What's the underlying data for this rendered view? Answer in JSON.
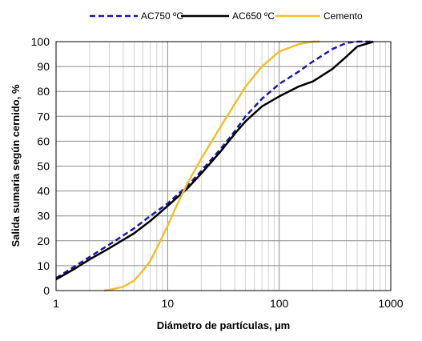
{
  "chart_data": {
    "type": "line",
    "xlabel": "Diámetro de partículas, µm",
    "ylabel": "Salida sumaria según cernido, %",
    "xscale": "log",
    "xlim": [
      1,
      1000
    ],
    "ylim": [
      0,
      100
    ],
    "x_tick_labels": [
      "1",
      "10",
      "100",
      "1000"
    ],
    "y_tick_labels": [
      "0",
      "10",
      "20",
      "30",
      "40",
      "50",
      "60",
      "70",
      "80",
      "90",
      "100"
    ],
    "grid": true,
    "legend_position": "top",
    "series": [
      {
        "name": "AC750 ºC",
        "color": "#1a1aa6",
        "style": "dashed",
        "points": [
          [
            1,
            5
          ],
          [
            1.5,
            10
          ],
          [
            2,
            13.5
          ],
          [
            3,
            18.5
          ],
          [
            5,
            25
          ],
          [
            7,
            30
          ],
          [
            10,
            35
          ],
          [
            15,
            42
          ],
          [
            20,
            48
          ],
          [
            30,
            57
          ],
          [
            40,
            64
          ],
          [
            50,
            70
          ],
          [
            70,
            77
          ],
          [
            100,
            83
          ],
          [
            150,
            88
          ],
          [
            200,
            92
          ],
          [
            300,
            97
          ],
          [
            400,
            99.5
          ],
          [
            500,
            100
          ],
          [
            700,
            100
          ]
        ]
      },
      {
        "name": "AC650 ºC",
        "color": "#000000",
        "style": "solid",
        "points": [
          [
            1,
            4.5
          ],
          [
            1.5,
            9
          ],
          [
            2,
            12.5
          ],
          [
            3,
            17
          ],
          [
            5,
            23
          ],
          [
            7,
            28
          ],
          [
            10,
            34
          ],
          [
            15,
            41
          ],
          [
            20,
            47
          ],
          [
            30,
            56
          ],
          [
            40,
            63
          ],
          [
            50,
            68
          ],
          [
            70,
            74
          ],
          [
            100,
            78
          ],
          [
            150,
            82
          ],
          [
            200,
            84
          ],
          [
            300,
            89
          ],
          [
            400,
            94
          ],
          [
            500,
            98
          ],
          [
            700,
            100
          ]
        ]
      },
      {
        "name": "Cemento",
        "color": "#f2c02e",
        "style": "solid",
        "points": [
          [
            2.7,
            0
          ],
          [
            3,
            0.3
          ],
          [
            4,
            1.5
          ],
          [
            5,
            4
          ],
          [
            6,
            8
          ],
          [
            7,
            12
          ],
          [
            8,
            17
          ],
          [
            10,
            26
          ],
          [
            12,
            34
          ],
          [
            15,
            43
          ],
          [
            20,
            53
          ],
          [
            30,
            66
          ],
          [
            40,
            75
          ],
          [
            50,
            82
          ],
          [
            70,
            90
          ],
          [
            100,
            96
          ],
          [
            150,
            99
          ],
          [
            200,
            100
          ],
          [
            230,
            100
          ]
        ]
      }
    ]
  }
}
